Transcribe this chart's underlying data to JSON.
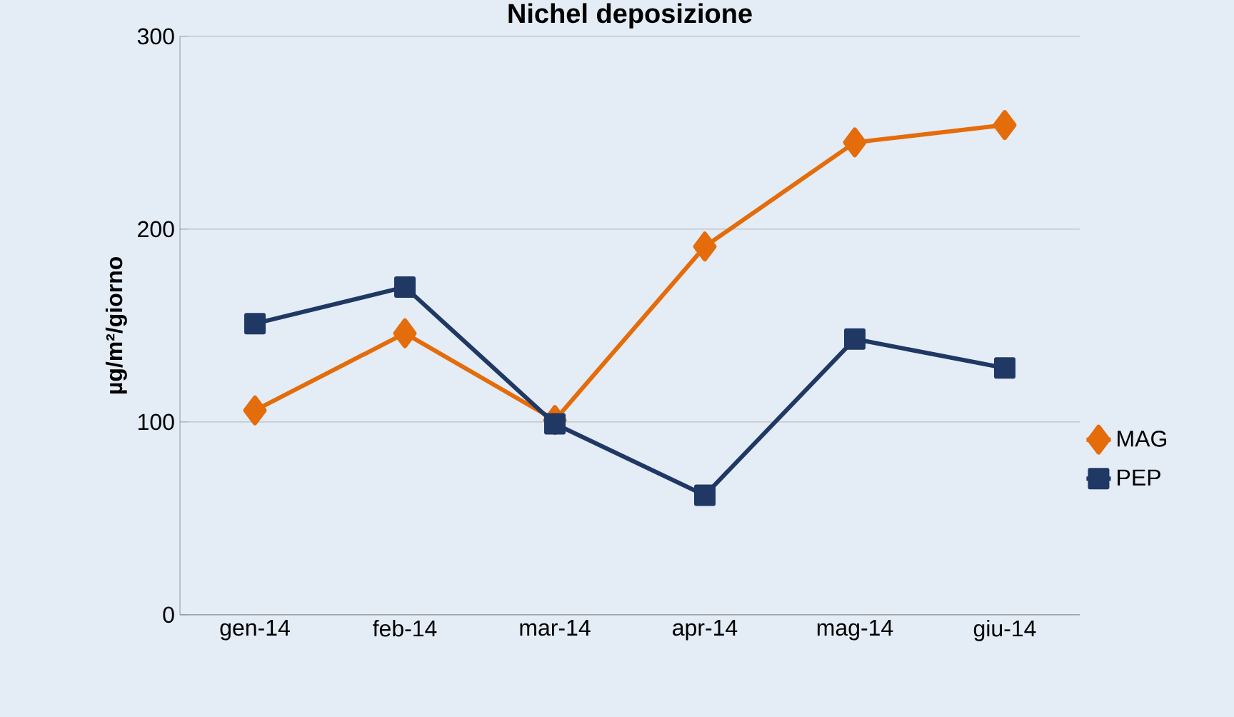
{
  "chart_data": {
    "type": "line",
    "title": "Nichel deposizione",
    "ylabel": "µg/m²/giorno",
    "categories": [
      "gen-14",
      "feb-14",
      "mar-14",
      "apr-14",
      "mag-14",
      "giu-14"
    ],
    "series": [
      {
        "name": "MAG",
        "color": "#e46c0a",
        "values": [
          106,
          146,
          101,
          191,
          245,
          254
        ],
        "marker": "diamond"
      },
      {
        "name": "PEP",
        "color": "#1f3864",
        "values": [
          151,
          170,
          99,
          62,
          143,
          128
        ],
        "marker": "square"
      }
    ],
    "ylim": [
      0,
      300
    ],
    "yticks": [
      0,
      100,
      200,
      300
    ],
    "grid": "y",
    "legend": "right",
    "line_style": "solid"
  }
}
